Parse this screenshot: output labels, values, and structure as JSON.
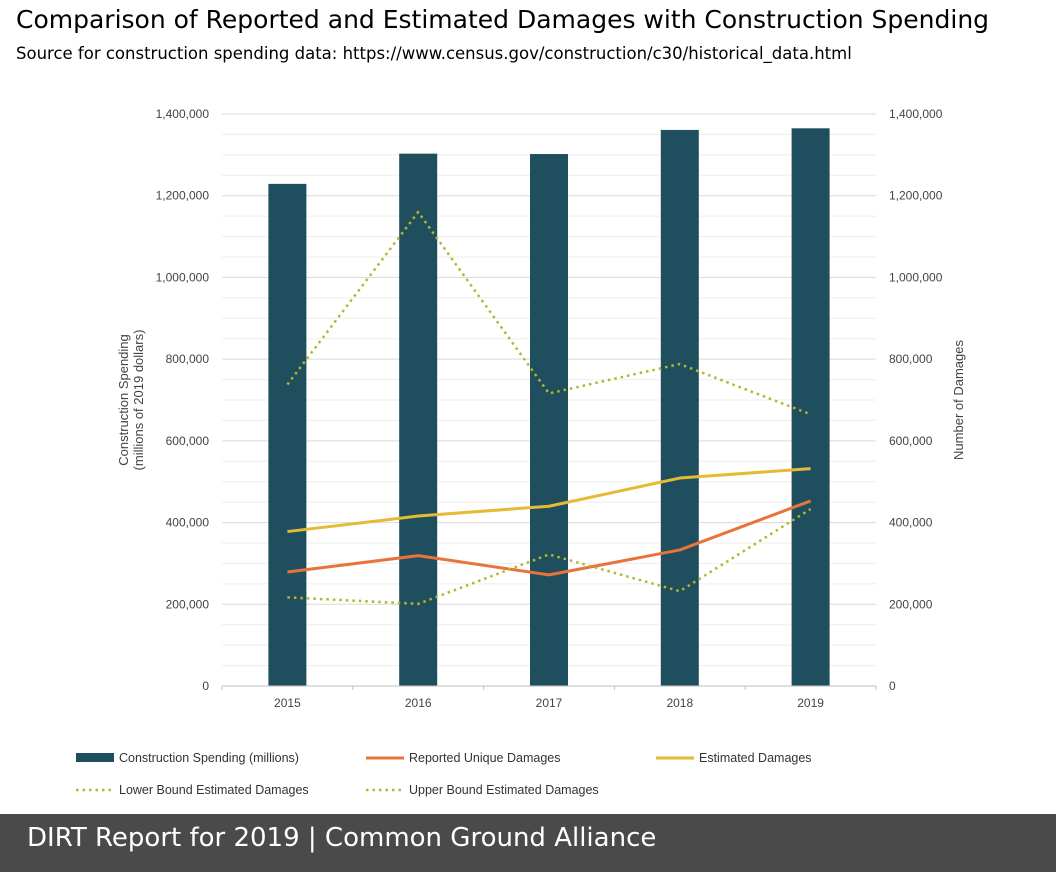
{
  "header": {
    "title": "Comparison of Reported and Estimated Damages with Construction Spending",
    "subtitle": "Source for construction spending data: https://www.census.gov/construction/c30/historical_data.html"
  },
  "footer": {
    "text": "DIRT Report for 2019  | Common Ground Alliance"
  },
  "chart_data": {
    "type": "bar",
    "categories": [
      "2015",
      "2016",
      "2017",
      "2018",
      "2019"
    ],
    "ylabel": "Construction Spending\n(millions of 2019 dollars)",
    "ylabel_right": "Number of Damages",
    "ylim": [
      0,
      1400000
    ],
    "ylim_right": [
      0,
      1400000
    ],
    "yticks": [
      0,
      200000,
      400000,
      600000,
      800000,
      1000000,
      1200000,
      1400000
    ],
    "ytick_labels": [
      "0",
      "200,000",
      "400,000",
      "600,000",
      "800,000",
      "1,000,000",
      "1,200,000",
      "1,400,000"
    ],
    "ytick_labels_right": [
      "0",
      "200,000",
      "400,000",
      "600,000",
      "800,000",
      "1,000,000",
      "1,200,000",
      "1,400,000"
    ],
    "grid": true,
    "legend_position": "bottom",
    "series": [
      {
        "name": "Construction Spending (millions)",
        "kind": "bar",
        "axis": "left",
        "color": "#1f4e5f",
        "values": [
          1229000,
          1303000,
          1302000,
          1361000,
          1365000
        ]
      },
      {
        "name": "Reported Unique Damages",
        "kind": "line",
        "axis": "right",
        "color": "#e8743b",
        "style": "solid",
        "values": [
          279000,
          319000,
          272000,
          333000,
          453000
        ]
      },
      {
        "name": "Estimated Damages",
        "kind": "line",
        "axis": "right",
        "color": "#e5ba34",
        "style": "solid",
        "values": [
          378000,
          416000,
          440000,
          509000,
          532000
        ]
      },
      {
        "name": "Lower Bound Estimated Damages",
        "kind": "line",
        "axis": "right",
        "color": "#b5b52e",
        "style": "dotted",
        "values": [
          217000,
          201000,
          322000,
          232000,
          433000
        ]
      },
      {
        "name": "Upper Bound Estimated Damages",
        "kind": "line",
        "axis": "right",
        "color": "#b5b52e",
        "style": "dotted",
        "values": [
          738000,
          1160000,
          716000,
          788000,
          665000
        ]
      }
    ]
  }
}
